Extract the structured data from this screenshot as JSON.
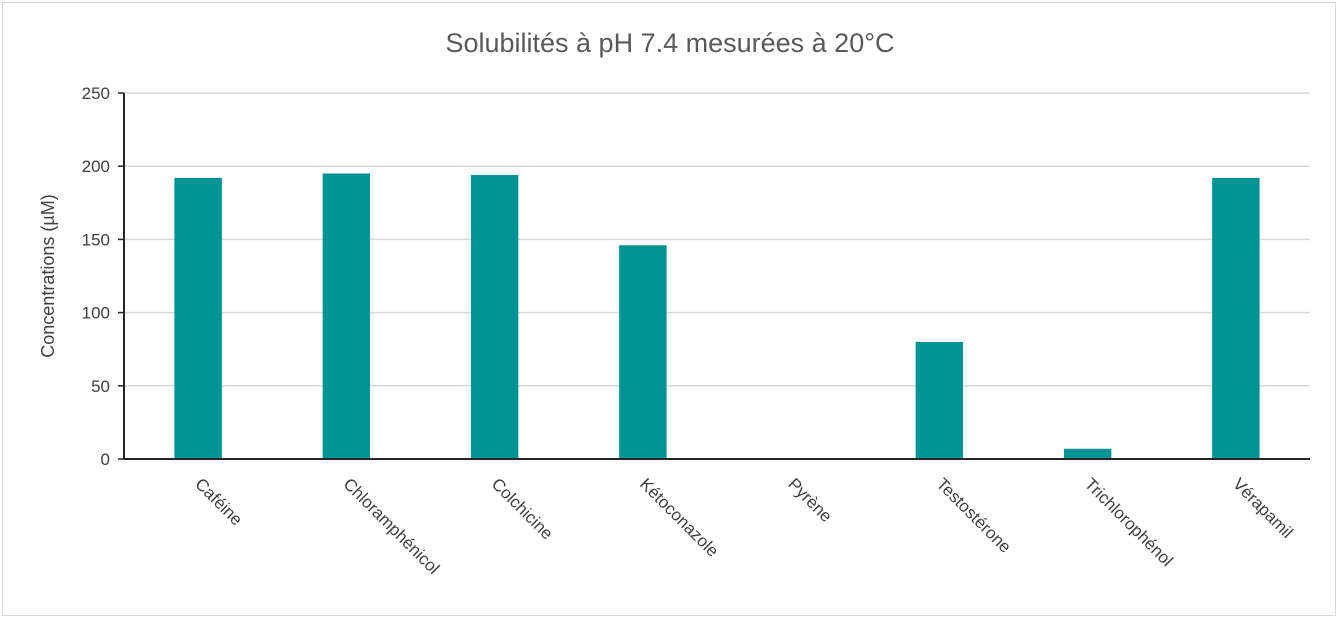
{
  "chart_data": {
    "type": "bar",
    "title": "Solubilités à pH 7.4 mesurées à 20°C",
    "ylabel": "Concentrations (µM)",
    "xlabel": "",
    "ylim": [
      0,
      250
    ],
    "yticks": [
      0,
      50,
      100,
      150,
      200,
      250
    ],
    "grid": true,
    "legend": "none",
    "bar_color": "#009393",
    "categories": [
      "Caféine",
      "Chloramphénicol",
      "Colchicine",
      "Kétoconazole",
      "Pyrène",
      "Testostérone",
      "Trichlorophénol",
      "Vérapamil"
    ],
    "values": [
      192,
      195,
      194,
      146,
      0,
      80,
      7,
      192
    ]
  }
}
